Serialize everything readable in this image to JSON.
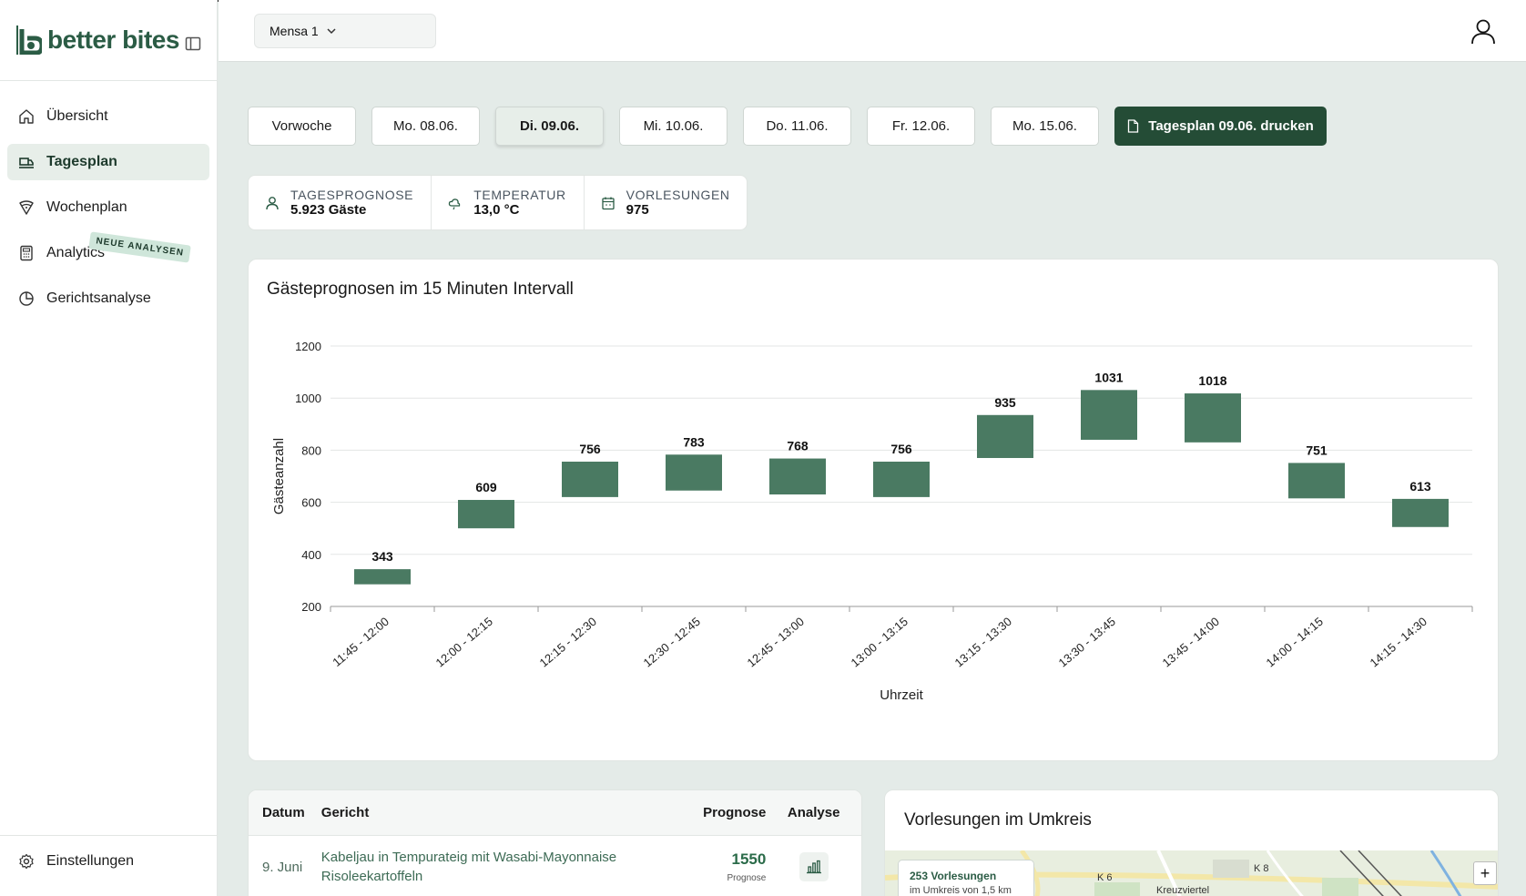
{
  "app": {
    "brand": "better bites"
  },
  "sidebar": {
    "items": [
      {
        "label": "Übersicht",
        "icon": "home-icon"
      },
      {
        "label": "Tagesplan",
        "icon": "truck-icon",
        "active": true
      },
      {
        "label": "Wochenplan",
        "icon": "pizza-icon"
      },
      {
        "label": "Analytics",
        "icon": "calculator-icon",
        "badge": "NEUE ANALYSEN"
      },
      {
        "label": "Gerichtsanalyse",
        "icon": "pie-chart-icon"
      }
    ],
    "settings_label": "Einstellungen"
  },
  "header": {
    "mensa": "Mensa 1"
  },
  "days": {
    "buttons": [
      "Vorwoche",
      "Mo. 08.06.",
      "Di. 09.06.",
      "Mi. 10.06.",
      "Do. 11.06.",
      "Fr. 12.06.",
      "Mo. 15.06."
    ],
    "active_index": 2,
    "print_label": "Tagesplan 09.06. drucken"
  },
  "stats": {
    "forecast": {
      "label": "TAGESPROGNOSE",
      "value": "5.923 Gäste"
    },
    "temperature": {
      "label": "TEMPERATUR",
      "value": "13,0 °C"
    },
    "lectures": {
      "label": "VORLESUNGEN",
      "value": "975"
    }
  },
  "chart_data": {
    "type": "bar",
    "title": "Gästeprognosen im 15 Minuten Intervall",
    "xlabel": "Uhrzeit",
    "ylabel": "Gästeanzahl",
    "ylim": [
      200,
      1200
    ],
    "yticks": [
      200,
      400,
      600,
      800,
      1000,
      1200
    ],
    "grid": true,
    "color": "#4a7a62",
    "categories": [
      "11:45 - 12:00",
      "12:00 - 12:15",
      "12:15 - 12:30",
      "12:30 - 12:45",
      "12:45 - 13:00",
      "13:00 - 13:15",
      "13:15 - 13:30",
      "13:30 - 13:45",
      "13:45 - 14:00",
      "14:00 - 14:15",
      "14:15 - 14:30"
    ],
    "values": [
      343,
      609,
      756,
      783,
      768,
      756,
      935,
      1031,
      1018,
      751,
      613
    ],
    "lows": [
      285,
      500,
      620,
      645,
      630,
      620,
      770,
      840,
      830,
      615,
      505
    ]
  },
  "table": {
    "headers": {
      "date": "Datum",
      "dish": "Gericht",
      "forecast": "Prognose",
      "analysis": "Analyse"
    },
    "rows": [
      {
        "date": "9. Juni",
        "dish": "Kabeljau in Tempurateig mit Wasabi-Mayonnaise Risoleekartoffeln",
        "forecast": "1550",
        "forecast_sub": "Prognose"
      }
    ]
  },
  "map": {
    "title": "Vorlesungen im Umkreis",
    "tooltip_title": "253 Vorlesungen",
    "tooltip_sub": "im Umkreis von 1,5 km",
    "labels": [
      "K 6",
      "K 8",
      "Kreuzviertel"
    ],
    "zoom_in": "+"
  }
}
